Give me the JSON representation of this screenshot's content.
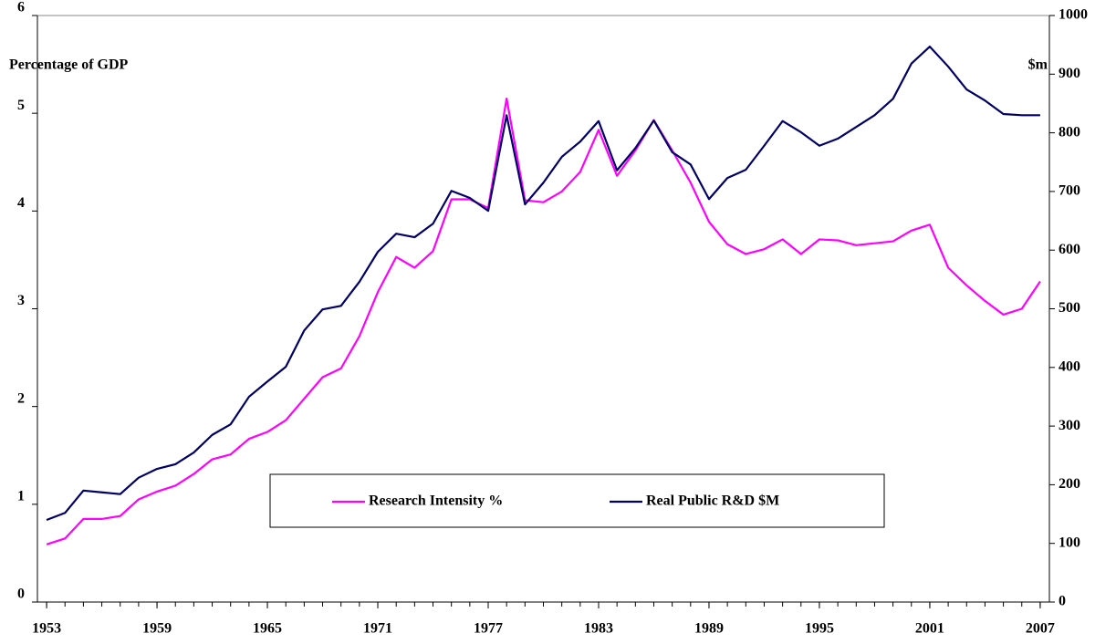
{
  "chart_data": {
    "type": "line",
    "y_label": "Percentage of GDP",
    "y2_label": "$m",
    "x": [
      1953,
      1954,
      1955,
      1956,
      1957,
      1958,
      1959,
      1960,
      1961,
      1962,
      1963,
      1964,
      1965,
      1966,
      1967,
      1968,
      1969,
      1970,
      1971,
      1972,
      1973,
      1974,
      1975,
      1976,
      1977,
      1978,
      1979,
      1980,
      1981,
      1982,
      1983,
      1984,
      1985,
      1986,
      1987,
      1988,
      1989,
      1990,
      1991,
      1992,
      1993,
      1994,
      1995,
      1996,
      1997,
      1998,
      1999,
      2000,
      2001,
      2002,
      2003,
      2004,
      2005,
      2006,
      2007
    ],
    "series": [
      {
        "name": "Research Intensity %",
        "color": "#ff00ff",
        "axis": "y",
        "values": [
          0.59,
          0.65,
          0.85,
          0.85,
          0.88,
          1.05,
          1.13,
          1.19,
          1.31,
          1.46,
          1.51,
          1.67,
          1.74,
          1.86,
          2.08,
          2.3,
          2.39,
          2.72,
          3.17,
          3.53,
          3.42,
          3.59,
          4.12,
          4.12,
          4.03,
          5.15,
          4.11,
          4.09,
          4.2,
          4.4,
          4.83,
          4.36,
          4.62,
          4.93,
          4.62,
          4.29,
          3.89,
          3.66,
          3.56,
          3.61,
          3.71,
          3.56,
          3.71,
          3.7,
          3.65,
          3.67,
          3.69,
          3.8,
          3.86,
          3.42,
          3.24,
          3.08,
          2.94,
          3.0,
          3.28
        ]
      },
      {
        "name": "Real Public R&D $M",
        "color": "#000066",
        "axis": "y2",
        "values": [
          140,
          152,
          190,
          187,
          184,
          212,
          227,
          235,
          255,
          285,
          303,
          350,
          376,
          401,
          463,
          499,
          505,
          546,
          597,
          628,
          622,
          645,
          701,
          689,
          667,
          830,
          678,
          715,
          759,
          785,
          820,
          736,
          774,
          821,
          767,
          746,
          687,
          723,
          737,
          778,
          820,
          801,
          778,
          790,
          810,
          830,
          858,
          918,
          947,
          913,
          874,
          855,
          832,
          830,
          830
        ]
      }
    ],
    "xlim": [
      1952.5,
      2007.5
    ],
    "xticks": [
      1953,
      1959,
      1965,
      1971,
      1977,
      1983,
      1989,
      1995,
      2001,
      2007
    ],
    "ylim": [
      0,
      6
    ],
    "yticks": [
      0,
      1,
      2,
      3,
      4,
      5,
      6
    ],
    "y2lim": [
      0,
      1000
    ],
    "y2ticks": [
      0,
      100,
      200,
      300,
      400,
      500,
      600,
      700,
      800,
      900,
      1000
    ],
    "legend": "center"
  }
}
